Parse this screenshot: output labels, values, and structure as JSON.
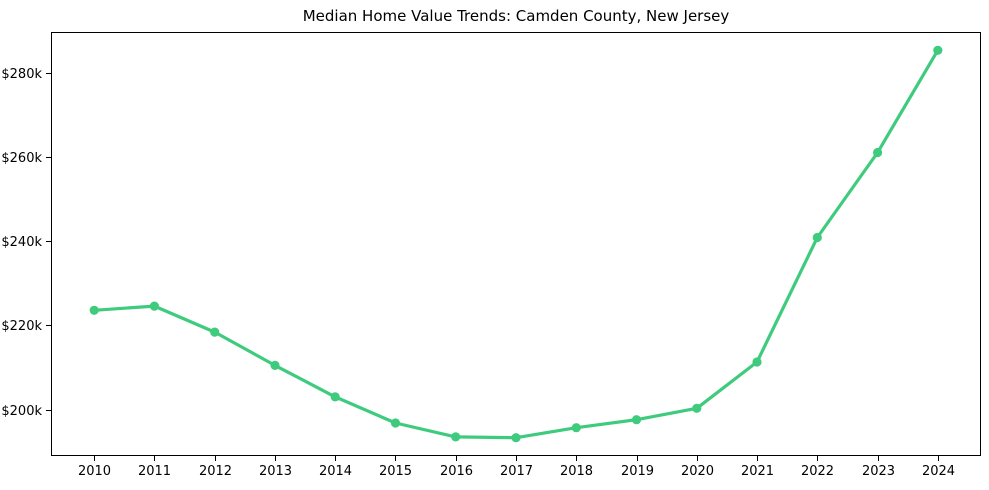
{
  "chart_data": {
    "type": "line",
    "title": "Median Home Value Trends: Camden County, New Jersey",
    "xlabel": "",
    "ylabel": "",
    "values_unit": "USD thousands",
    "categories": [
      "2010",
      "2011",
      "2012",
      "2013",
      "2014",
      "2015",
      "2016",
      "2017",
      "2018",
      "2019",
      "2020",
      "2021",
      "2022",
      "2023",
      "2024"
    ],
    "series": [
      {
        "name": "Median Home Value",
        "values": [
          223.6,
          224.6,
          218.4,
          210.5,
          203.0,
          196.8,
          193.5,
          193.3,
          195.7,
          197.6,
          200.3,
          211.3,
          240.9,
          261.1,
          285.4
        ]
      }
    ],
    "yticks": [
      {
        "value": 200,
        "label": "$200k"
      },
      {
        "value": 220,
        "label": "$220k"
      },
      {
        "value": 240,
        "label": "$240k"
      },
      {
        "value": 260,
        "label": "$260k"
      },
      {
        "value": 280,
        "label": "$280k"
      }
    ],
    "ylim": [
      189.2,
      289.5
    ],
    "xlim": [
      -0.7,
      14.7
    ],
    "grid": false,
    "legend": "none",
    "marker": "circle"
  },
  "colors": {
    "line": "#3ecb7e",
    "marker": "#3ecb7e",
    "axis": "#000000",
    "text": "#000000",
    "background": "#ffffff"
  }
}
